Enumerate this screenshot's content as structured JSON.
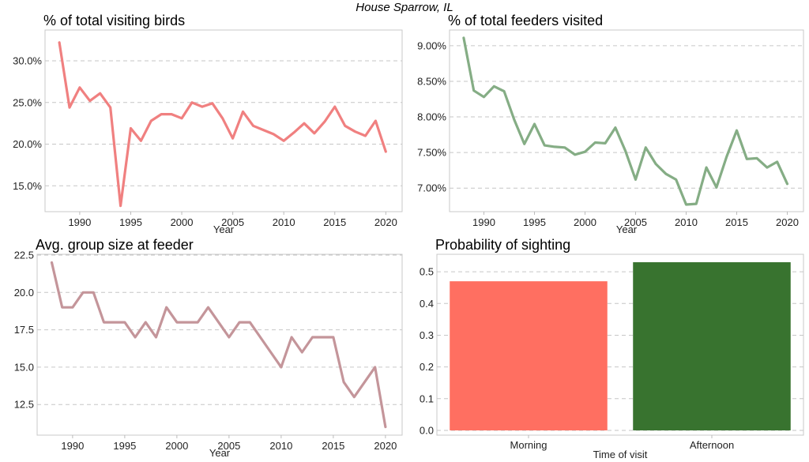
{
  "figure_title": "House Sparrow, IL",
  "chart_data": [
    {
      "id": "visiting",
      "type": "line",
      "title": "% of total visiting birds",
      "xlabel": "Year",
      "ylabel": "",
      "color": "#f08080",
      "x": [
        1988,
        1989,
        1990,
        1991,
        1992,
        1993,
        1994,
        1995,
        1996,
        1997,
        1998,
        1999,
        2000,
        2001,
        2002,
        2003,
        2004,
        2005,
        2006,
        2007,
        2008,
        2009,
        2010,
        2011,
        2012,
        2013,
        2014,
        2015,
        2016,
        2017,
        2018,
        2019,
        2020
      ],
      "y": [
        32.2,
        24.4,
        26.8,
        25.2,
        26.1,
        24.4,
        12.6,
        21.9,
        20.4,
        22.8,
        23.6,
        23.6,
        23.1,
        25.0,
        24.5,
        24.9,
        23.1,
        20.7,
        23.9,
        22.2,
        21.7,
        21.2,
        20.4,
        21.4,
        22.5,
        21.3,
        22.7,
        24.5,
        22.2,
        21.5,
        21.0,
        22.8,
        19.1
      ],
      "xlim": [
        1986.6,
        2021.6
      ],
      "ylim": [
        11.9,
        33.7
      ],
      "xticks": [
        1990,
        1995,
        2000,
        2005,
        2010,
        2015,
        2020
      ],
      "xticklabels": [
        "1990",
        "1995",
        "2000",
        "2005",
        "2010",
        "2015",
        "2020"
      ],
      "yticks": [
        15,
        20,
        25,
        30
      ],
      "yticklabels": [
        "15.0%",
        "20.0%",
        "25.0%",
        "30.0%"
      ],
      "grid": true
    },
    {
      "id": "feeders",
      "type": "line",
      "title": "% of total feeders visited",
      "xlabel": "Year",
      "ylabel": "",
      "color": "#85ad85",
      "x": [
        1988,
        1989,
        1990,
        1991,
        1992,
        1993,
        1994,
        1995,
        1996,
        1997,
        1998,
        1999,
        2000,
        2001,
        2002,
        2003,
        2004,
        2005,
        2006,
        2007,
        2008,
        2009,
        2010,
        2011,
        2012,
        2013,
        2014,
        2015,
        2016,
        2017,
        2018,
        2019,
        2020
      ],
      "y": [
        9.11,
        8.37,
        8.28,
        8.43,
        8.36,
        7.96,
        7.62,
        7.9,
        7.6,
        7.58,
        7.57,
        7.47,
        7.51,
        7.64,
        7.63,
        7.85,
        7.52,
        7.12,
        7.57,
        7.34,
        7.2,
        7.12,
        6.77,
        6.78,
        7.29,
        7.01,
        7.44,
        7.81,
        7.41,
        7.42,
        7.29,
        7.37,
        7.06
      ],
      "xlim": [
        1986.6,
        2021.6
      ],
      "ylim": [
        6.67,
        9.22
      ],
      "xticks": [
        1990,
        1995,
        2000,
        2005,
        2010,
        2015,
        2020
      ],
      "xticklabels": [
        "1990",
        "1995",
        "2000",
        "2005",
        "2010",
        "2015",
        "2020"
      ],
      "yticks": [
        7.0,
        7.5,
        8.0,
        8.5,
        9.0
      ],
      "yticklabels": [
        "7.00%",
        "7.50%",
        "8.00%",
        "8.50%",
        "9.00%"
      ],
      "grid": true
    },
    {
      "id": "groupsize",
      "type": "line",
      "title": "Avg. group size at feeder",
      "xlabel": "Year",
      "ylabel": "",
      "color": "#c4959a",
      "x": [
        1988,
        1989,
        1990,
        1991,
        1992,
        1993,
        1994,
        1995,
        1996,
        1997,
        1998,
        1999,
        2000,
        2001,
        2002,
        2003,
        2004,
        2005,
        2006,
        2007,
        2008,
        2009,
        2010,
        2011,
        2012,
        2013,
        2014,
        2015,
        2016,
        2017,
        2018,
        2019,
        2020
      ],
      "y": [
        22,
        19,
        19,
        20,
        20,
        18,
        18,
        18,
        17,
        18,
        17,
        19,
        18,
        18,
        18,
        19,
        18,
        17,
        18,
        18,
        17,
        16,
        15,
        17,
        16,
        17,
        17,
        17,
        14,
        13,
        14,
        15,
        11
      ],
      "xlim": [
        1986.6,
        2021.6
      ],
      "ylim": [
        10.45,
        22.55
      ],
      "xticks": [
        1990,
        1995,
        2000,
        2005,
        2010,
        2015,
        2020
      ],
      "xticklabels": [
        "1990",
        "1995",
        "2000",
        "2005",
        "2010",
        "2015",
        "2020"
      ],
      "yticks": [
        12.5,
        15.0,
        17.5,
        20.0,
        22.5
      ],
      "yticklabels": [
        "12.5",
        "15.0",
        "17.5",
        "20.0",
        "22.5"
      ],
      "grid": true
    },
    {
      "id": "sighting",
      "type": "bar",
      "title": "Probability of sighting",
      "xlabel": "Time of visit",
      "ylabel": "",
      "categories": [
        "Morning",
        "Afternoon"
      ],
      "values": [
        0.47,
        0.53
      ],
      "colors": [
        "#ff6f61",
        "#38732f"
      ],
      "ylim": [
        -0.015,
        0.555
      ],
      "yticks": [
        0,
        0.1,
        0.2,
        0.3,
        0.4,
        0.5
      ],
      "yticklabels": [
        "0.0",
        "0.1",
        "0.2",
        "0.3",
        "0.4",
        "0.5"
      ],
      "grid": true
    }
  ]
}
